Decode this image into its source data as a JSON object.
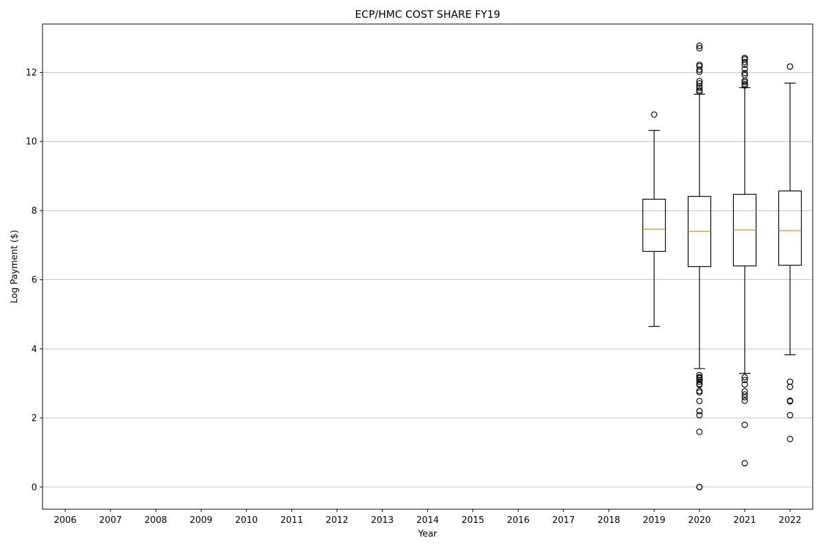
{
  "chart_data": {
    "type": "box",
    "title": "ECP/HMC COST SHARE FY19",
    "xlabel": "Year",
    "ylabel": "Log Payment ($)",
    "categories": [
      "2006",
      "2007",
      "2008",
      "2009",
      "2010",
      "2011",
      "2012",
      "2013",
      "2014",
      "2015",
      "2016",
      "2017",
      "2018",
      "2019",
      "2020",
      "2021",
      "2022"
    ],
    "ylim": [
      -0.64,
      13.4
    ],
    "yticks": [
      0,
      2,
      4,
      6,
      8,
      10,
      12
    ],
    "grid": "y",
    "colors": {
      "box": "#000000",
      "median": "#ff7f0e",
      "grid": "#b0b0b0"
    },
    "boxes": [
      {
        "category": "2019",
        "whisker_low": 4.65,
        "q1": 6.82,
        "median": 7.46,
        "q3": 8.33,
        "whisker_high": 10.32,
        "outliers": [
          10.78
        ]
      },
      {
        "category": "2020",
        "whisker_low": 3.43,
        "q1": 6.38,
        "median": 7.4,
        "q3": 8.41,
        "whisker_high": 11.37,
        "outliers": [
          12.77,
          12.7,
          12.22,
          12.18,
          12.08,
          12.02,
          11.75,
          11.68,
          11.6,
          11.55,
          11.48,
          11.44,
          3.24,
          3.18,
          3.15,
          3.1,
          3.05,
          2.98,
          2.96,
          2.78,
          2.74,
          2.49,
          2.2,
          2.08,
          1.6,
          0.0,
          0.0
        ]
      },
      {
        "category": "2021",
        "whisker_low": 3.29,
        "q1": 6.4,
        "median": 7.44,
        "q3": 8.47,
        "whisker_high": 11.56,
        "outliers": [
          12.42,
          12.38,
          12.3,
          12.22,
          12.1,
          11.98,
          11.92,
          11.76,
          11.72,
          11.66,
          11.62,
          3.18,
          3.1,
          2.97,
          2.77,
          2.68,
          2.6,
          2.5,
          1.8,
          0.69
        ]
      },
      {
        "category": "2022",
        "whisker_low": 3.83,
        "q1": 6.42,
        "median": 7.42,
        "q3": 8.57,
        "whisker_high": 11.69,
        "outliers": [
          12.17,
          3.05,
          2.9,
          2.5,
          2.48,
          2.08,
          1.39
        ]
      }
    ]
  }
}
